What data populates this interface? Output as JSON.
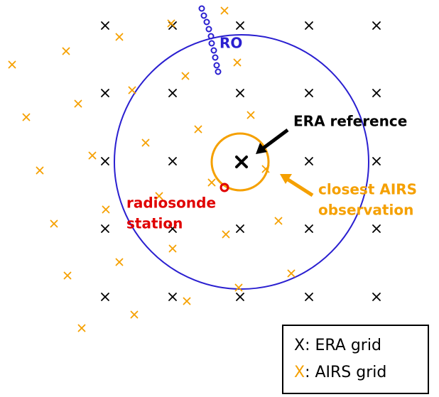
{
  "labels": {
    "ro": "RO",
    "era_reference": "ERA reference",
    "airs_line1": "closest AIRS",
    "airs_line2": "observation",
    "radiosonde_line1": "radiosonde",
    "radiosonde_line2": "station"
  },
  "legend": [
    {
      "marker": "X",
      "label": ": ERA grid"
    },
    {
      "marker": "X",
      "label": ": AIRS grid"
    }
  ]
}
